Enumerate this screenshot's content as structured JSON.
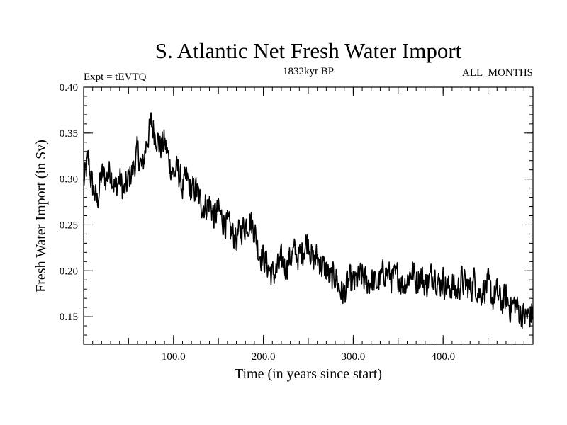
{
  "chart_data": {
    "type": "line",
    "title": "S. Atlantic Net Fresh Water Import",
    "subtitle_left": "Expt = tEVTQ",
    "subtitle_center": "1832kyr BP",
    "subtitle_right": "ALL_MONTHS",
    "xlabel": "Time (in years since start)",
    "ylabel": "Fresh Water Import (in Sv)",
    "xlim": [
      0,
      500
    ],
    "ylim": [
      0.12,
      0.4
    ],
    "x_ticks": [
      100,
      200,
      300,
      400
    ],
    "x_tick_labels": [
      "100.0",
      "200.0",
      "300.0",
      "400.0"
    ],
    "y_ticks": [
      0.15,
      0.2,
      0.25,
      0.3,
      0.35,
      0.4
    ],
    "y_tick_labels": [
      "0.15",
      "0.20",
      "0.25",
      "0.30",
      "0.35",
      "0.40"
    ],
    "series": [
      {
        "name": "Net Fresh Water Import",
        "x": [
          0,
          5,
          10,
          15,
          20,
          25,
          30,
          35,
          40,
          45,
          50,
          55,
          60,
          65,
          70,
          75,
          80,
          85,
          90,
          95,
          100,
          105,
          110,
          115,
          120,
          125,
          130,
          135,
          140,
          145,
          150,
          155,
          160,
          165,
          170,
          175,
          180,
          185,
          190,
          195,
          200,
          205,
          210,
          215,
          220,
          225,
          230,
          235,
          240,
          245,
          250,
          255,
          260,
          265,
          270,
          275,
          280,
          285,
          290,
          295,
          300,
          305,
          310,
          315,
          320,
          325,
          330,
          335,
          340,
          345,
          350,
          355,
          360,
          365,
          370,
          375,
          380,
          385,
          390,
          395,
          400,
          405,
          410,
          415,
          420,
          425,
          430,
          435,
          440,
          445,
          450,
          455,
          460,
          465,
          470,
          475,
          480,
          485,
          490,
          495,
          500
        ],
        "y": [
          0.295,
          0.32,
          0.29,
          0.275,
          0.305,
          0.3,
          0.31,
          0.29,
          0.3,
          0.285,
          0.3,
          0.31,
          0.33,
          0.31,
          0.34,
          0.36,
          0.35,
          0.335,
          0.34,
          0.32,
          0.305,
          0.31,
          0.29,
          0.3,
          0.285,
          0.29,
          0.275,
          0.27,
          0.275,
          0.26,
          0.265,
          0.255,
          0.25,
          0.24,
          0.235,
          0.245,
          0.25,
          0.255,
          0.245,
          0.22,
          0.215,
          0.205,
          0.195,
          0.2,
          0.21,
          0.205,
          0.215,
          0.22,
          0.215,
          0.225,
          0.235,
          0.21,
          0.215,
          0.205,
          0.2,
          0.19,
          0.195,
          0.18,
          0.175,
          0.19,
          0.185,
          0.19,
          0.195,
          0.185,
          0.19,
          0.185,
          0.19,
          0.2,
          0.195,
          0.19,
          0.195,
          0.185,
          0.19,
          0.2,
          0.19,
          0.195,
          0.185,
          0.19,
          0.2,
          0.185,
          0.19,
          0.18,
          0.185,
          0.175,
          0.19,
          0.185,
          0.18,
          0.19,
          0.175,
          0.18,
          0.185,
          0.17,
          0.175,
          0.165,
          0.17,
          0.16,
          0.165,
          0.155,
          0.15,
          0.15,
          0.155
        ]
      }
    ]
  }
}
